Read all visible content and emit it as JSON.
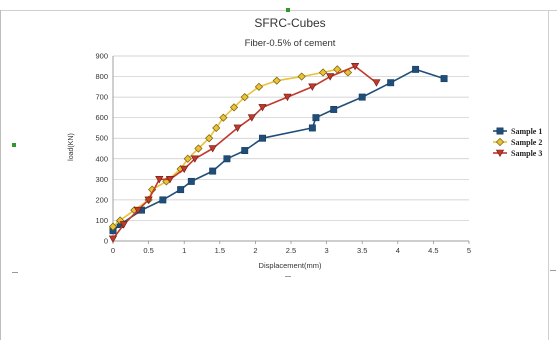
{
  "chart_data": {
    "type": "line",
    "title": "SFRC-Cubes",
    "subtitle": "Fiber-0.5% of cement",
    "xlabel": "Displacement(mm)",
    "ylabel": "load(KN)",
    "xlim": [
      0,
      5
    ],
    "ylim": [
      0,
      900
    ],
    "x_ticks": [
      "0",
      "0.5",
      "1",
      "1.5",
      "2",
      "2.5",
      "3",
      "3.5",
      "4",
      "4.5",
      "5"
    ],
    "y_ticks": [
      "0",
      "100",
      "200",
      "300",
      "400",
      "500",
      "600",
      "700",
      "800",
      "900"
    ],
    "grid": true,
    "legend_position": "right",
    "series": [
      {
        "name": "Sample 1",
        "color": "#1f4e79",
        "marker": "square",
        "x": [
          0,
          0.1,
          0.4,
          0.7,
          0.95,
          1.1,
          1.4,
          1.6,
          1.85,
          2.1,
          2.8,
          2.85,
          3.1,
          3.5,
          3.9,
          4.25,
          4.65
        ],
        "y": [
          50,
          80,
          150,
          200,
          250,
          290,
          340,
          400,
          440,
          500,
          550,
          600,
          640,
          700,
          770,
          835,
          790
        ]
      },
      {
        "name": "Sample 2",
        "color": "#e8c23a",
        "marker": "diamond",
        "x": [
          0,
          0.1,
          0.3,
          0.5,
          0.55,
          0.75,
          0.95,
          1.05,
          1.2,
          1.35,
          1.45,
          1.55,
          1.7,
          1.85,
          2.05,
          2.3,
          2.65,
          2.95,
          3.15,
          3.3
        ],
        "y": [
          70,
          100,
          150,
          200,
          250,
          290,
          350,
          400,
          450,
          500,
          550,
          600,
          650,
          700,
          750,
          780,
          800,
          820,
          835,
          820
        ]
      },
      {
        "name": "Sample 3",
        "color": "#c0392b",
        "marker": "triangle-down",
        "x": [
          0,
          0.15,
          0.35,
          0.5,
          0.65,
          0.8,
          1,
          1.15,
          1.4,
          1.75,
          1.95,
          2.1,
          2.45,
          2.8,
          3.05,
          3.4,
          3.7
        ],
        "y": [
          10,
          80,
          150,
          200,
          300,
          300,
          350,
          400,
          450,
          550,
          600,
          650,
          700,
          750,
          800,
          850,
          770
        ]
      }
    ]
  }
}
